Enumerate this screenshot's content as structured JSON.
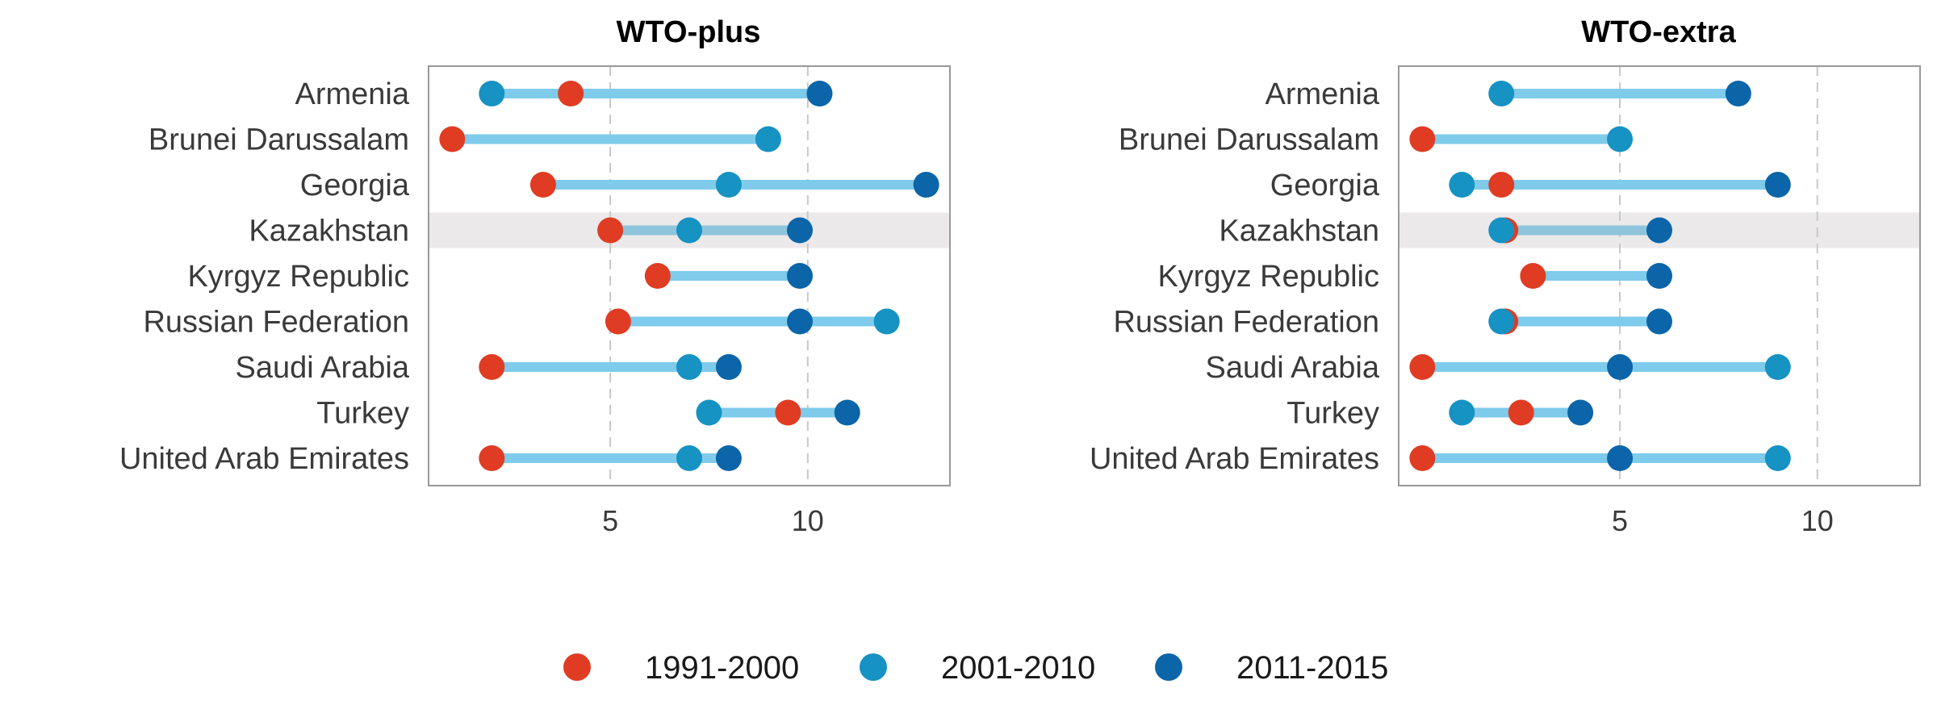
{
  "chart_data": [
    {
      "type": "dumbbell",
      "title": "WTO-plus",
      "xlim": [
        0.4,
        13.6
      ],
      "xticks": [
        5,
        10
      ],
      "grid": "vertical dashed",
      "highlight_category": "Kazakhstan",
      "categories": [
        "Armenia",
        "Brunei Darussalam",
        "Georgia",
        "Kazakhstan",
        "Kyrgyz Republic",
        "Russian Federation",
        "Saudi Arabia",
        "Turkey",
        "United Arab Emirates"
      ],
      "series": [
        {
          "name": "1991-2000",
          "values": [
            4,
            1,
            3.3,
            5,
            6.2,
            5.2,
            2,
            9.5,
            2
          ]
        },
        {
          "name": "2001-2010",
          "values": [
            2,
            9,
            8,
            7,
            null,
            12,
            7,
            7.5,
            7
          ]
        },
        {
          "name": "2011-2015",
          "values": [
            10.3,
            null,
            13,
            9.8,
            9.8,
            9.8,
            8,
            11,
            8
          ]
        }
      ]
    },
    {
      "type": "dumbbell",
      "title": "WTO-extra",
      "xlim": [
        -0.6,
        12.6
      ],
      "xticks": [
        5,
        10
      ],
      "grid": "vertical dashed",
      "highlight_category": "Kazakhstan",
      "categories": [
        "Armenia",
        "Brunei Darussalam",
        "Georgia",
        "Kazakhstan",
        "Kyrgyz Republic",
        "Russian Federation",
        "Saudi Arabia",
        "Turkey",
        "United Arab Emirates"
      ],
      "series": [
        {
          "name": "1991-2000",
          "values": [
            null,
            0,
            2,
            2.1,
            2.8,
            2.1,
            0,
            2.5,
            0
          ]
        },
        {
          "name": "2001-2010",
          "values": [
            2,
            5,
            1,
            2,
            null,
            2,
            9,
            1,
            9
          ]
        },
        {
          "name": "2011-2015",
          "values": [
            8,
            null,
            9,
            6,
            6,
            6,
            5,
            4,
            5
          ]
        }
      ]
    }
  ],
  "legend": {
    "placement": "bottom-center",
    "items": [
      {
        "label": "1991-2000",
        "color": "#e03c23"
      },
      {
        "label": "2001-2010",
        "color": "#1692c3"
      },
      {
        "label": "2011-2015",
        "color": "#0b65a8"
      }
    ]
  },
  "colors": {
    "bar": "#7ecbeb",
    "bar_highlight": "#8ec5dc",
    "highlight_band": "#ebe9ea",
    "grid": "#c8c8c8",
    "frame": "#999999"
  }
}
